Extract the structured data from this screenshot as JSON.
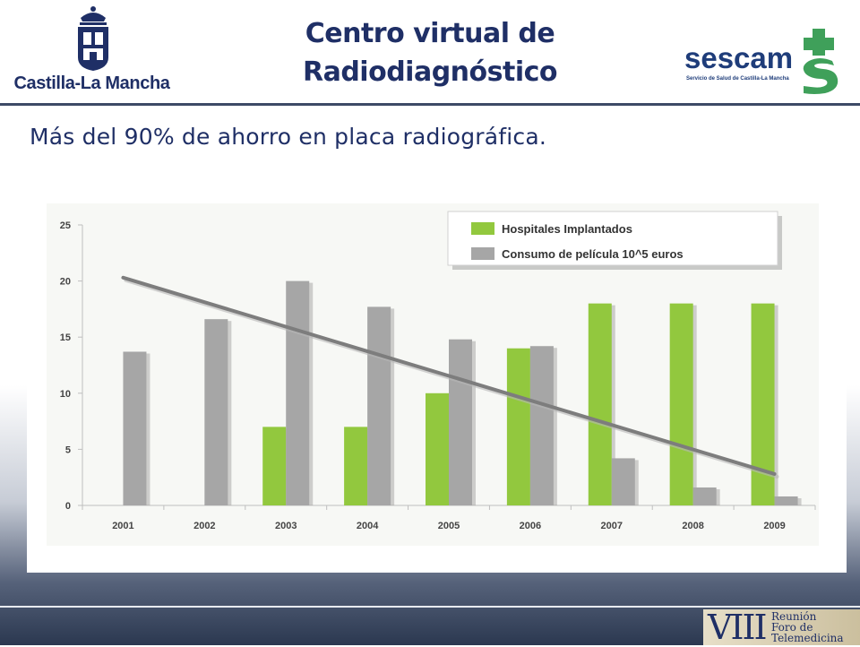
{
  "header": {
    "title_line1": "Centro virtual de",
    "title_line2": "Radiodiagnóstico",
    "left_logo_caption": "Castilla-La Mancha",
    "right_logo_name": "sescam",
    "right_logo_sub": "Servicio de Salud de Castilla-La Mancha"
  },
  "subtitle": "Más del 90% de ahorro en placa radiográfica.",
  "footer": {
    "roman": "VIII",
    "words": [
      "Reunión",
      "Foro de",
      "Telemedicina"
    ]
  },
  "colors": {
    "title": "#1f2f66",
    "green_series": "#92c83e",
    "gray_series": "#a6a6a6",
    "trend_line": "#7d7d7d",
    "sescam_green": "#3fa05a"
  },
  "chart_data": {
    "type": "bar",
    "categories": [
      "2001",
      "2002",
      "2003",
      "2004",
      "2005",
      "2006",
      "2007",
      "2008",
      "2009"
    ],
    "series": [
      {
        "name": "Hospitales Implantados",
        "values": [
          0,
          0,
          7,
          7,
          10,
          14,
          18,
          18,
          18
        ],
        "color": "#92c83e"
      },
      {
        "name": "Consumo de película  10^5 euros",
        "values": [
          13.7,
          16.6,
          20,
          17.7,
          14.8,
          14.2,
          4.2,
          1.6,
          0.8
        ],
        "color": "#a6a6a6"
      }
    ],
    "trend_line": {
      "from": {
        "x": "2001",
        "y": 20.3
      },
      "to": {
        "x": "2009",
        "y": 2.8
      },
      "color": "#7d7d7d"
    },
    "ylim": [
      0,
      25
    ],
    "yticks": [
      0,
      5,
      10,
      15,
      20,
      25
    ],
    "grid": false,
    "legend_position": "top-right"
  }
}
